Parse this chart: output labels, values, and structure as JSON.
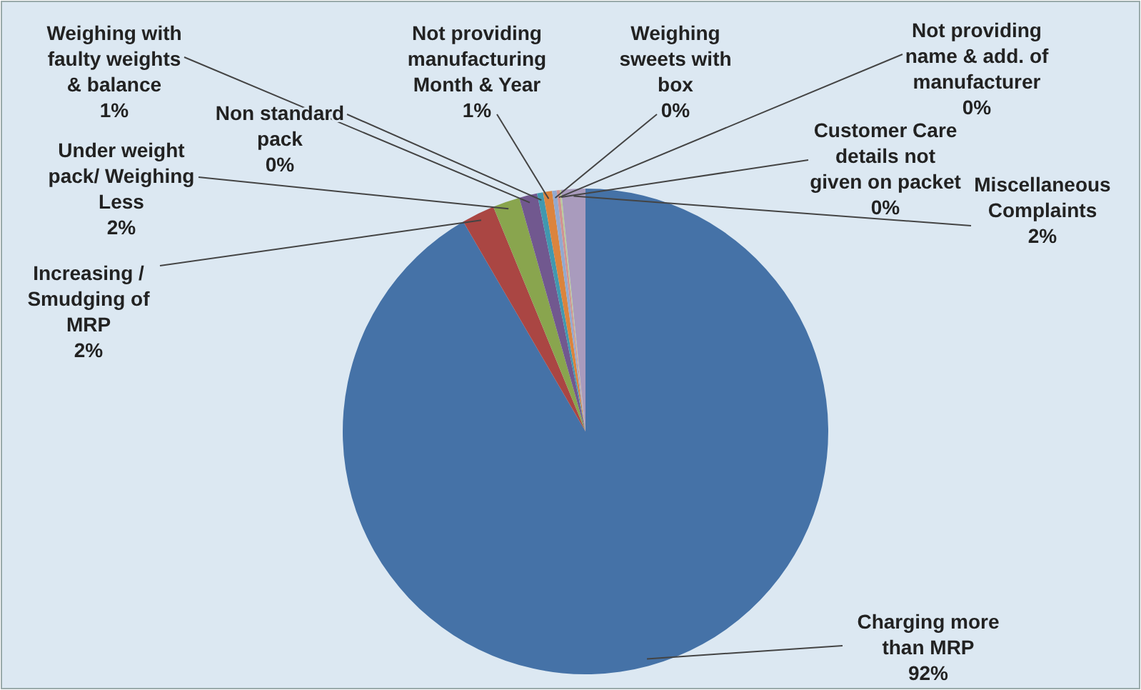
{
  "chart_data": {
    "type": "pie",
    "categories": [
      "Charging more than MRP",
      "Increasing / Smudging of MRP",
      "Under weight pack/ Weighing Less",
      "Weighing with faulty weights & balance",
      "Non standard pack",
      "Not providing manufacturing Month & Year",
      "Weighing sweets with box",
      "Not providing name & add. of manufacturer",
      "Customer Care details not given on packet",
      "Miscellaneous Complaints"
    ],
    "values": [
      91.6,
      2.2,
      1.8,
      1.2,
      0.4,
      0.6,
      0.3,
      0.2,
      0.1,
      1.6
    ],
    "value_labels": [
      "92%",
      "2%",
      "2%",
      "1%",
      "0%",
      "1%",
      "0%",
      "0%",
      "0%",
      "2%"
    ],
    "colors": [
      "#4572a7",
      "#aa4643",
      "#89a54e",
      "#71588f",
      "#4198af",
      "#db843d",
      "#93a9cf",
      "#d19392",
      "#b9cd96",
      "#a99bbd"
    ],
    "legend": false
  }
}
